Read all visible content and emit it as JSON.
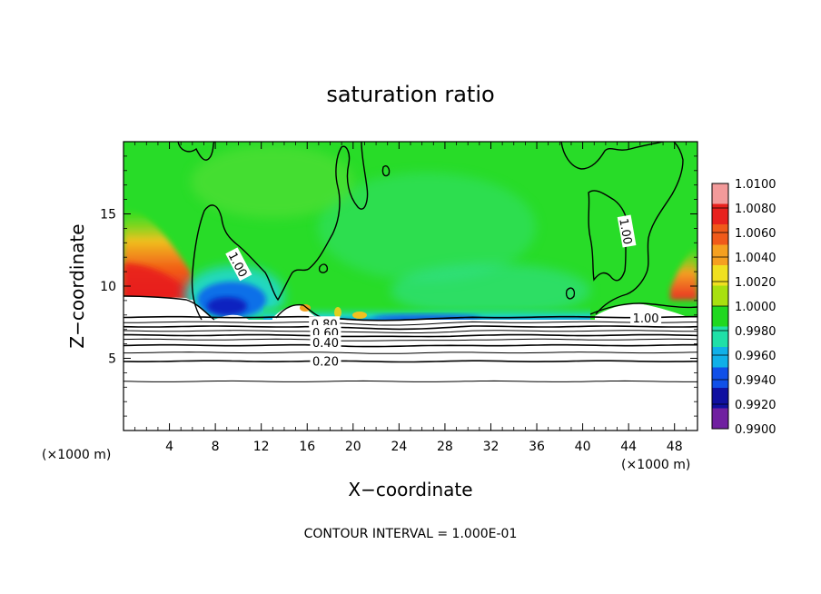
{
  "chart_data": {
    "type": "heatmap",
    "title": "saturation ratio",
    "xlabel": "X−coordinate",
    "ylabel": "Z−coordinate",
    "x_unit_left": "(×1000 m)",
    "x_unit_right": "(×1000 m)",
    "xlim": [
      0,
      50
    ],
    "ylim": [
      0,
      20
    ],
    "x_ticks": [
      4,
      8,
      12,
      16,
      20,
      24,
      28,
      32,
      36,
      40,
      44,
      48
    ],
    "y_ticks": [
      5,
      10,
      15
    ],
    "x_tick_labels": [
      "4",
      "8",
      "12",
      "16",
      "20",
      "24",
      "28",
      "32",
      "36",
      "40",
      "44",
      "48"
    ],
    "y_tick_labels": [
      "5",
      "10",
      "15"
    ],
    "footnote": "CONTOUR INTERVAL = 1.000E-01",
    "contour_labels": [
      {
        "text": "1.00",
        "x": 10,
        "z": 11.5,
        "rotate": 62
      },
      {
        "text": "1.00",
        "x": 43.8,
        "z": 13.8,
        "rotate": 80
      },
      {
        "text": "1.00",
        "x": 45.5,
        "z": 7.8,
        "rotate": 0
      },
      {
        "text": "0.80",
        "x": 17.5,
        "z": 7.4,
        "rotate": 0
      },
      {
        "text": "0.60",
        "x": 17.6,
        "z": 6.8,
        "rotate": 0
      },
      {
        "text": "0.40",
        "x": 17.6,
        "z": 6.1,
        "rotate": 0
      },
      {
        "text": "0.20",
        "x": 17.6,
        "z": 4.8,
        "rotate": 0
      }
    ],
    "contour_levels_below_cloud": [
      {
        "z": 3.4,
        "level": 0.1
      },
      {
        "z": 4.8,
        "level": 0.2
      },
      {
        "z": 5.4,
        "level": 0.3
      },
      {
        "z": 5.9,
        "level": 0.4
      },
      {
        "z": 6.3,
        "level": 0.5
      },
      {
        "z": 6.6,
        "level": 0.6
      },
      {
        "z": 6.9,
        "level": 0.7
      },
      {
        "z": 7.2,
        "level": 0.8
      },
      {
        "z": 7.5,
        "level": 0.9
      },
      {
        "z": 7.85,
        "level": 1.0
      }
    ],
    "colorbar": {
      "levels": [
        "1.0100",
        "1.0080",
        "1.0060",
        "1.0040",
        "1.0020",
        "1.0000",
        "0.9980",
        "0.9960",
        "0.9940",
        "0.9920",
        "0.9900"
      ],
      "colors": [
        "#f29a9a",
        "#e8221e",
        "#f05a1a",
        "#f5a020",
        "#f0e020",
        "#a8e010",
        "#20d820",
        "#20e0a8",
        "#10b0e8",
        "#1050e8",
        "#1010a0",
        "#7020a0"
      ]
    },
    "regions": [
      {
        "name": "background",
        "value": 0.9995,
        "color": "#28dc28"
      },
      {
        "name": "left-supersaturated",
        "x": [
          0,
          5
        ],
        "z": [
          9,
          12.5
        ],
        "value": 1.006
      },
      {
        "name": "right-supersaturated",
        "x": [
          47,
          50
        ],
        "z": [
          9,
          11
        ],
        "value": 1.004
      },
      {
        "name": "subsaturated-blue",
        "x": [
          7,
          12
        ],
        "z": [
          7.8,
          10
        ],
        "value": 0.993
      },
      {
        "name": "cloud-base-edge",
        "x": [
          12,
          40
        ],
        "z": [
          7.5,
          8.2
        ],
        "value": 0.996
      }
    ]
  }
}
